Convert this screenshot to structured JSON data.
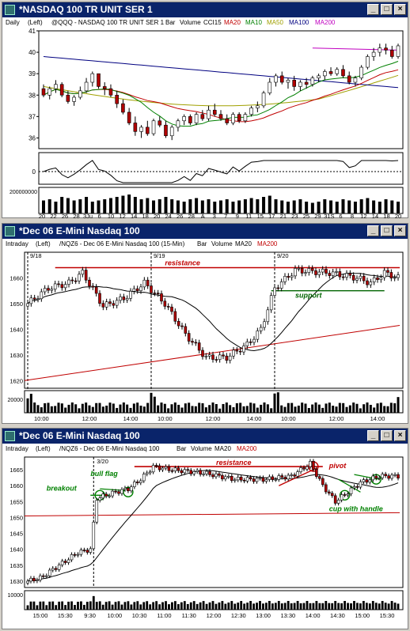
{
  "window1": {
    "title": "*NASDAQ 100 TR UNIT SER 1",
    "info": {
      "period": "Daily",
      "axis": "(Left)",
      "symbol": "@QQQ - NASDAQ 100 TR UNIT SER 1",
      "bar": "Bar",
      "volume": "Volume",
      "cci": "CCI15",
      "ma20": "MA20",
      "ma10": "MA10",
      "ma50": "MA50",
      "ma100": "MA100",
      "ma200": "MA200"
    }
  },
  "window2": {
    "title": "*Dec 06  E-Mini Nasdaq 100",
    "info": {
      "period": "Intraday",
      "axis": "(Left)",
      "symbol": "/NQZ6 - Dec 06 E-Mini Nasdaq 100 (15-Min)",
      "bar": "Bar",
      "volume": "Volume",
      "ma20": "MA20",
      "ma200": "MA200"
    }
  },
  "window3": {
    "title": "*Dec 06  E-Mini Nasdaq 100",
    "info": {
      "period": "Intraday",
      "axis": "(Left)",
      "symbol": "/NQZ6 - Dec 06 E-Mini Nasdaq 100",
      "bar": "Bar",
      "volume": "Volume",
      "ma20": "MA20",
      "ma200": "MA200"
    }
  },
  "colors": {
    "ma20": "#c00000",
    "ma10": "#008000",
    "ma50": "#a0a000",
    "ma100": "#000080",
    "ma200": "#c000c0",
    "price": "#000000",
    "resistance": "#c00000",
    "support": "#006400",
    "annot_green": "#008000"
  },
  "chart_data": [
    {
      "type": "bar",
      "yticks": [
        "41",
        "40",
        "39",
        "38",
        "37",
        "36"
      ],
      "ylim": [
        35.5,
        41
      ],
      "xtick_labels": [
        "20",
        "22",
        "26",
        "28",
        "3Ju",
        "6",
        "10",
        "12",
        "14",
        "18",
        "20",
        "24",
        "26",
        "28",
        "A",
        "3",
        "7",
        "9",
        "11",
        "15",
        "17",
        "21",
        "23",
        "25",
        "29",
        "31S",
        "6",
        "8",
        "12",
        "14",
        "18",
        "20"
      ],
      "ohlc": [
        [
          38.3,
          38.5,
          37.9,
          38.0
        ],
        [
          38.0,
          38.4,
          37.8,
          38.3
        ],
        [
          38.3,
          38.7,
          38.1,
          38.5
        ],
        [
          38.5,
          38.6,
          37.9,
          38.0
        ],
        [
          38.0,
          38.2,
          37.6,
          37.7
        ],
        [
          37.7,
          38.0,
          37.5,
          37.9
        ],
        [
          37.9,
          38.4,
          37.8,
          38.2
        ],
        [
          38.2,
          38.8,
          38.1,
          38.6
        ],
        [
          38.6,
          39.1,
          38.4,
          39.0
        ],
        [
          39.0,
          39.0,
          38.3,
          38.4
        ],
        [
          38.4,
          38.6,
          38.0,
          38.3
        ],
        [
          38.3,
          38.5,
          37.9,
          38.0
        ],
        [
          38.0,
          38.2,
          37.4,
          37.6
        ],
        [
          37.6,
          37.8,
          37.1,
          37.2
        ],
        [
          37.2,
          37.4,
          36.6,
          36.7
        ],
        [
          36.7,
          37.0,
          36.1,
          36.3
        ],
        [
          36.3,
          36.6,
          36.0,
          36.5
        ],
        [
          36.5,
          36.8,
          36.1,
          36.2
        ],
        [
          36.2,
          36.9,
          36.1,
          36.8
        ],
        [
          36.8,
          37.0,
          36.5,
          36.6
        ],
        [
          36.6,
          36.8,
          36.0,
          36.1
        ],
        [
          36.1,
          36.6,
          35.9,
          36.5
        ],
        [
          36.5,
          36.9,
          36.3,
          36.8
        ],
        [
          36.8,
          37.1,
          36.6,
          37.0
        ],
        [
          37.0,
          37.1,
          36.6,
          36.7
        ],
        [
          36.7,
          37.2,
          36.6,
          37.1
        ],
        [
          37.1,
          37.3,
          36.8,
          36.9
        ],
        [
          36.9,
          37.5,
          36.8,
          37.3
        ],
        [
          37.3,
          37.6,
          37.0,
          37.1
        ],
        [
          37.1,
          37.3,
          36.8,
          36.9
        ],
        [
          36.9,
          37.1,
          36.6,
          36.7
        ],
        [
          36.7,
          37.2,
          36.6,
          37.1
        ],
        [
          37.1,
          37.2,
          36.7,
          36.8
        ],
        [
          36.8,
          37.2,
          36.7,
          37.1
        ],
        [
          37.1,
          37.5,
          37.0,
          37.4
        ],
        [
          37.4,
          37.7,
          37.2,
          37.5
        ],
        [
          37.5,
          38.2,
          37.4,
          38.1
        ],
        [
          38.1,
          38.8,
          38.0,
          38.6
        ],
        [
          38.6,
          39.0,
          38.4,
          38.9
        ],
        [
          38.9,
          39.1,
          38.5,
          38.6
        ],
        [
          38.6,
          38.8,
          38.3,
          38.7
        ],
        [
          38.7,
          38.9,
          38.2,
          38.4
        ],
        [
          38.4,
          38.7,
          38.2,
          38.6
        ],
        [
          38.6,
          38.8,
          38.3,
          38.5
        ],
        [
          38.5,
          38.9,
          38.4,
          38.8
        ],
        [
          38.8,
          39.0,
          38.6,
          38.9
        ],
        [
          38.9,
          39.2,
          38.7,
          39.1
        ],
        [
          39.1,
          39.3,
          38.9,
          39.0
        ],
        [
          39.0,
          39.3,
          38.9,
          39.2
        ],
        [
          39.2,
          39.4,
          38.8,
          38.9
        ],
        [
          38.9,
          39.1,
          38.5,
          38.6
        ],
        [
          38.6,
          38.9,
          38.4,
          38.8
        ],
        [
          38.8,
          39.4,
          38.7,
          39.3
        ],
        [
          39.3,
          39.9,
          39.2,
          39.8
        ],
        [
          39.8,
          40.2,
          39.6,
          40.0
        ],
        [
          40.0,
          40.4,
          39.8,
          40.2
        ],
        [
          40.2,
          40.4,
          39.9,
          40.1
        ],
        [
          40.1,
          40.3,
          39.7,
          39.8
        ],
        [
          39.8,
          40.4,
          39.7,
          40.3
        ]
      ],
      "volume": [
        0.55,
        0.6,
        0.5,
        0.7,
        0.65,
        0.55,
        0.6,
        0.7,
        0.5,
        0.55,
        0.6,
        0.65,
        0.7,
        0.75,
        0.8,
        0.7,
        0.6,
        0.65,
        0.55,
        0.6,
        0.7,
        0.6,
        0.55,
        0.5,
        0.6,
        0.65,
        0.55,
        0.6,
        0.5,
        0.55,
        0.6,
        0.5,
        0.55,
        0.6,
        0.65,
        0.6,
        0.7,
        0.75,
        0.6,
        0.55,
        0.5,
        0.55,
        0.6,
        0.5,
        0.45,
        0.5,
        0.6,
        0.55,
        0.5,
        0.6,
        0.55,
        0.5,
        0.6,
        0.65,
        0.55,
        0.5,
        0.6,
        0.55,
        0.5
      ],
      "volume_tick": "200000000",
      "cci_tick": "0"
    },
    {
      "type": "bar",
      "yticks": [
        "1660",
        "1650",
        "1640",
        "1630",
        "1620"
      ],
      "ylim": [
        1617,
        1670
      ],
      "xtick_labels": [
        "10:00",
        "12:00",
        "14:00",
        "10:00",
        "12:00",
        "14:00",
        "10:00",
        "12:00",
        "14:00"
      ],
      "date_labels": [
        "9/18",
        "9/19",
        "9/20"
      ],
      "resistance": 1664,
      "support": 1655,
      "volume_tick": "20000",
      "annotations": {
        "resistance": "resistance",
        "support": "support"
      }
    },
    {
      "type": "bar",
      "yticks": [
        "1665",
        "1660",
        "1655",
        "1650",
        "1645",
        "1640",
        "1635",
        "1630"
      ],
      "ylim": [
        1628,
        1669
      ],
      "xtick_labels": [
        "15:00",
        "15:30",
        "9:30",
        "10:00",
        "10:30",
        "11:00",
        "11:30",
        "12:00",
        "12:30",
        "13:00",
        "13:30",
        "14:00",
        "14:30",
        "15:00",
        "15:30"
      ],
      "date_labels": [
        "3/20"
      ],
      "resistance": 1666,
      "volume_tick": "10000",
      "annotations": {
        "resistance": "resistance",
        "pivot": "pivot",
        "breakout": "breakout",
        "bull_flag": "bull flag",
        "cup_handle": "cup with handle"
      }
    }
  ]
}
